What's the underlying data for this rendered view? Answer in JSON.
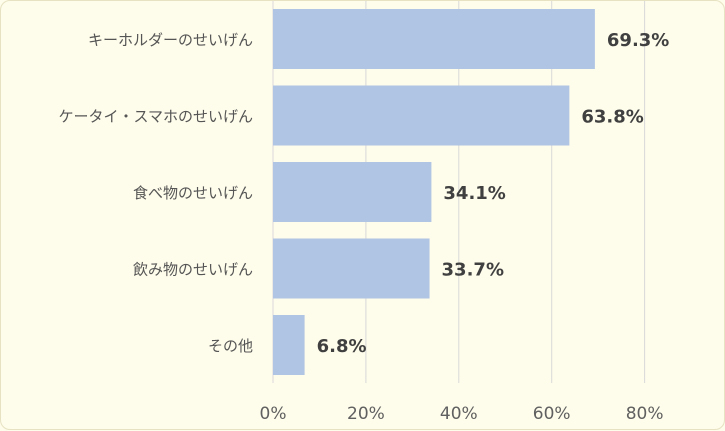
{
  "chart_data": {
    "type": "bar",
    "orientation": "horizontal",
    "categories": [
      "キーホルダーのせいげん",
      "ケータイ・スマホのせいげん",
      "食べ物のせいげん",
      "飲み物のせいげん",
      "その他"
    ],
    "values": [
      69.3,
      63.8,
      34.1,
      33.7,
      6.8
    ],
    "value_labels": [
      "69.3%",
      "63.8%",
      "34.1%",
      "33.7%",
      "6.8%"
    ],
    "xlim": [
      0,
      80
    ],
    "x_ticks": [
      0,
      20,
      40,
      60,
      80
    ],
    "x_tick_labels": [
      "0%",
      "20%",
      "40%",
      "60%",
      "80%"
    ],
    "grid": true,
    "legend": "none",
    "bar_color": "#b0c4e3",
    "background_color": "#fefcea",
    "grid_color": "#d9d9d9"
  }
}
